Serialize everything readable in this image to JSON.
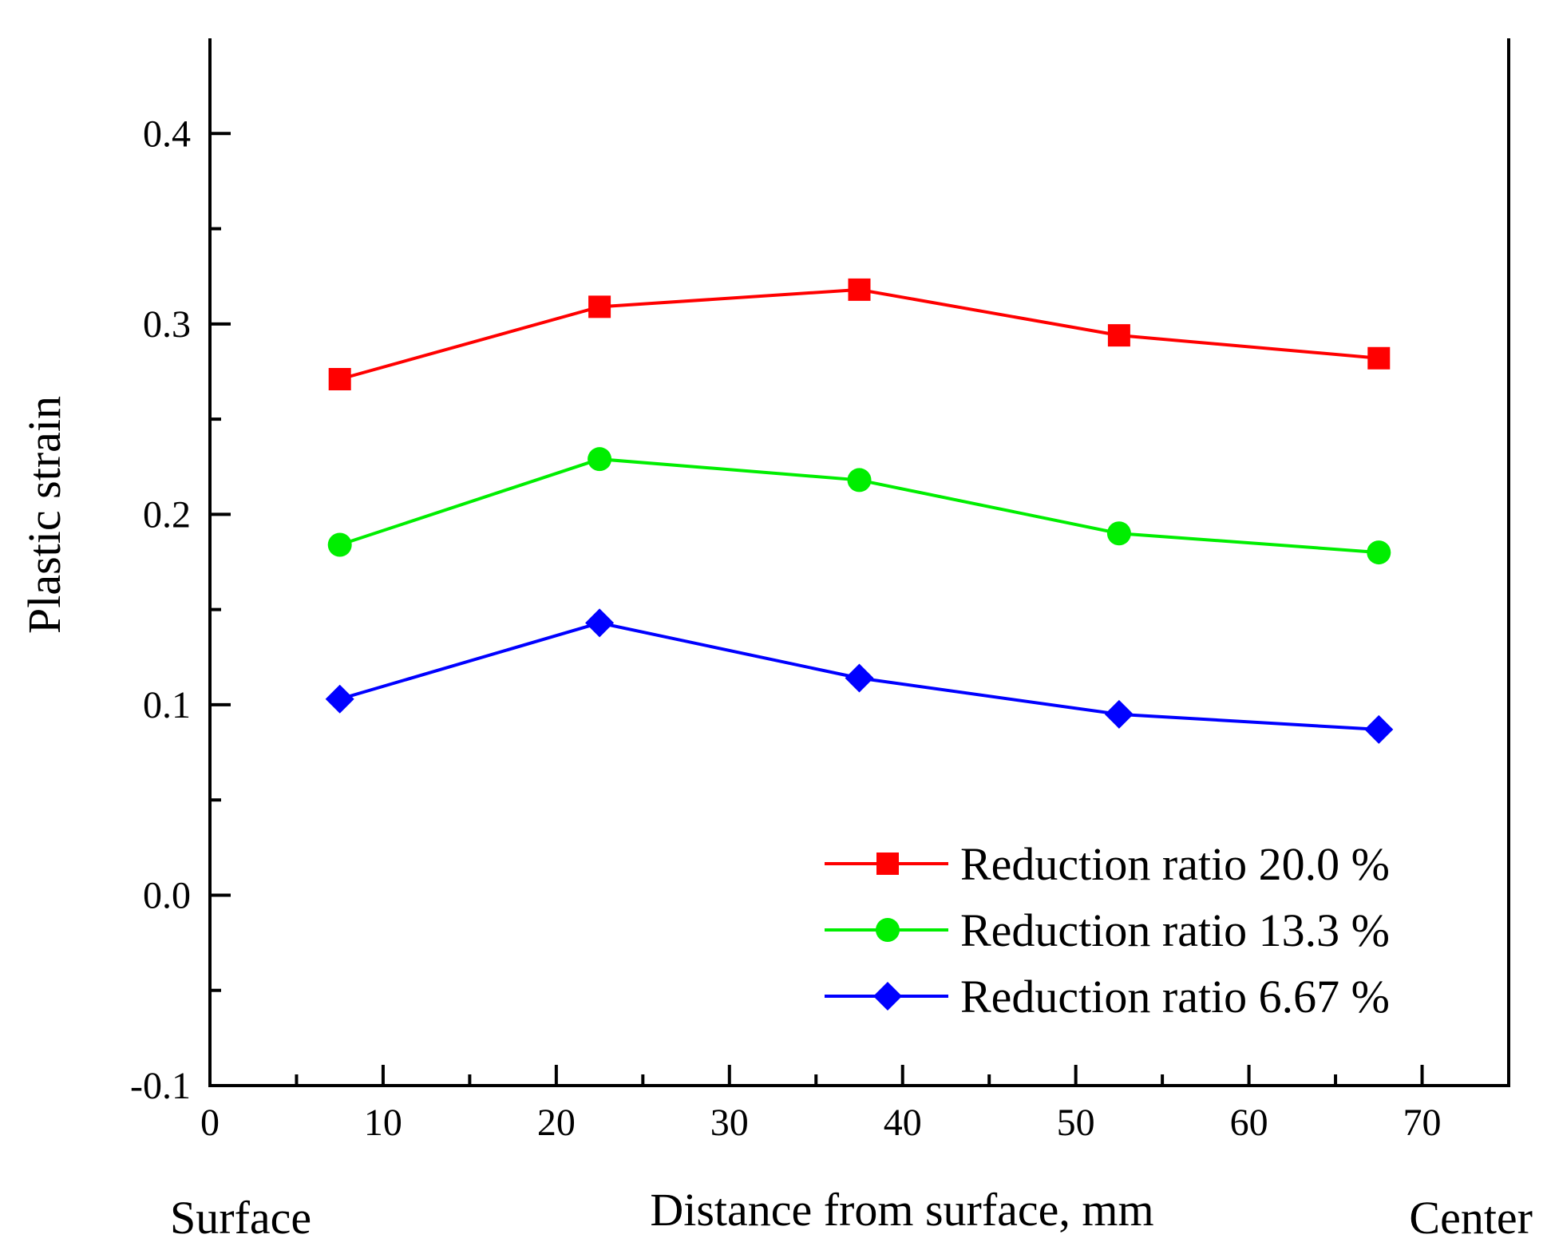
{
  "chart_data": {
    "type": "line",
    "title": "",
    "xlabel": "Distance from surface, mm",
    "ylabel": "Plastic strain",
    "x_side_labels": {
      "left": "Surface",
      "right": "Center"
    },
    "xlim": [
      0,
      75
    ],
    "ylim": [
      -0.1,
      0.45
    ],
    "x_ticks": [
      0,
      10,
      20,
      30,
      40,
      50,
      60,
      70
    ],
    "x_tick_labels": [
      "0",
      "10",
      "20",
      "30",
      "40",
      "50",
      "60",
      "70"
    ],
    "y_ticks": [
      -0.1,
      0.0,
      0.1,
      0.2,
      0.3,
      0.4
    ],
    "y_tick_labels": [
      "-0.1",
      "0.0",
      "0.1",
      "0.2",
      "0.3",
      "0.4"
    ],
    "x": [
      7.5,
      22.5,
      37.5,
      52.5,
      67.5
    ],
    "series": [
      {
        "name": "Reduction ratio 20.0 %",
        "color": "#ff0000",
        "marker": "square",
        "values": [
          0.271,
          0.309,
          0.318,
          0.294,
          0.282
        ]
      },
      {
        "name": "Reduction ratio 13.3 %",
        "color": "#00ee00",
        "marker": "circle",
        "values": [
          0.184,
          0.229,
          0.218,
          0.19,
          0.18
        ]
      },
      {
        "name": "Reduction ratio 6.67 %",
        "color": "#0000ff",
        "marker": "diamond",
        "values": [
          0.103,
          0.143,
          0.114,
          0.095,
          0.087
        ]
      }
    ],
    "legend_position": "bottom-right",
    "grid": false
  }
}
